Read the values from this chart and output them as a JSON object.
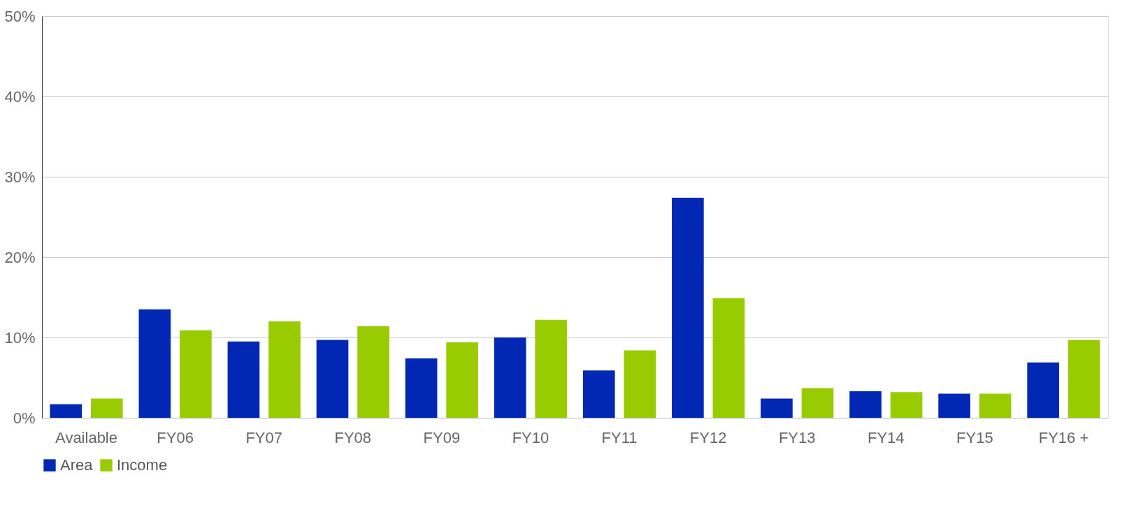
{
  "chart_data": {
    "type": "bar",
    "categories": [
      "Available",
      "FY06",
      "FY07",
      "FY08",
      "FY09",
      "FY10",
      "FY11",
      "FY12",
      "FY13",
      "FY14",
      "FY15",
      "FY16 +"
    ],
    "series": [
      {
        "name": "Area",
        "color": "#0028b4",
        "values": [
          1.7,
          13.5,
          9.5,
          9.7,
          7.4,
          10.0,
          5.9,
          27.4,
          2.4,
          3.3,
          3.0,
          6.9
        ]
      },
      {
        "name": "Income",
        "color": "#99cc00",
        "values": [
          2.4,
          10.9,
          12.0,
          11.4,
          9.4,
          12.2,
          8.4,
          14.9,
          3.7,
          3.2,
          3.0,
          9.7
        ]
      }
    ],
    "ylim": [
      0,
      50
    ],
    "yticks": [
      {
        "value": 0,
        "label": "0%"
      },
      {
        "value": 10,
        "label": "10%"
      },
      {
        "value": 20,
        "label": "20%"
      },
      {
        "value": 30,
        "label": "30%"
      },
      {
        "value": 40,
        "label": "40%"
      },
      {
        "value": 50,
        "label": "50%"
      }
    ],
    "grid": "y",
    "legend": "bottom"
  }
}
